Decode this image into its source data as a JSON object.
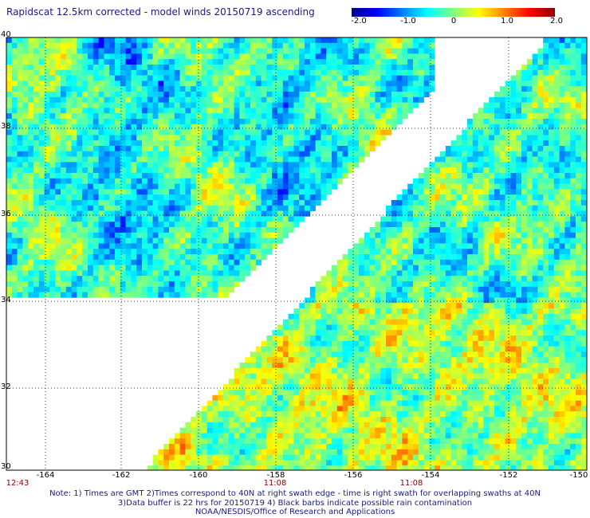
{
  "title": "Rapidscat 12.5km corrected - model winds 20150719 ascending",
  "colorbar": {
    "ticks": [
      "-2.0",
      "-1.0",
      "0",
      "1.0",
      "2.0"
    ],
    "stops": [
      "#00008b",
      "#0000ff",
      "#0080ff",
      "#00ffff",
      "#80ff80",
      "#ffff00",
      "#ff8000",
      "#ff0000",
      "#8b0000"
    ]
  },
  "map": {
    "lat_labels": [
      "40",
      "38",
      "36",
      "34",
      "32",
      "30"
    ],
    "lon_labels": [
      "-164",
      "-162",
      "-160",
      "-158",
      "-156",
      "-154",
      "-152",
      "-150"
    ],
    "time_labels": [
      "12:43",
      "11:08",
      "11:08"
    ]
  },
  "notes": [
    "Note: 1) Times are GMT 2)Times correspond to 40N at right swath edge - time is right swath for overlapping swaths at 40N",
    "3)Data buffer is 22 hrs for 20150719 4) Black barbs indicate possible rain contamination",
    "NOAA/NESDIS/Office of Research and Applications"
  ]
}
